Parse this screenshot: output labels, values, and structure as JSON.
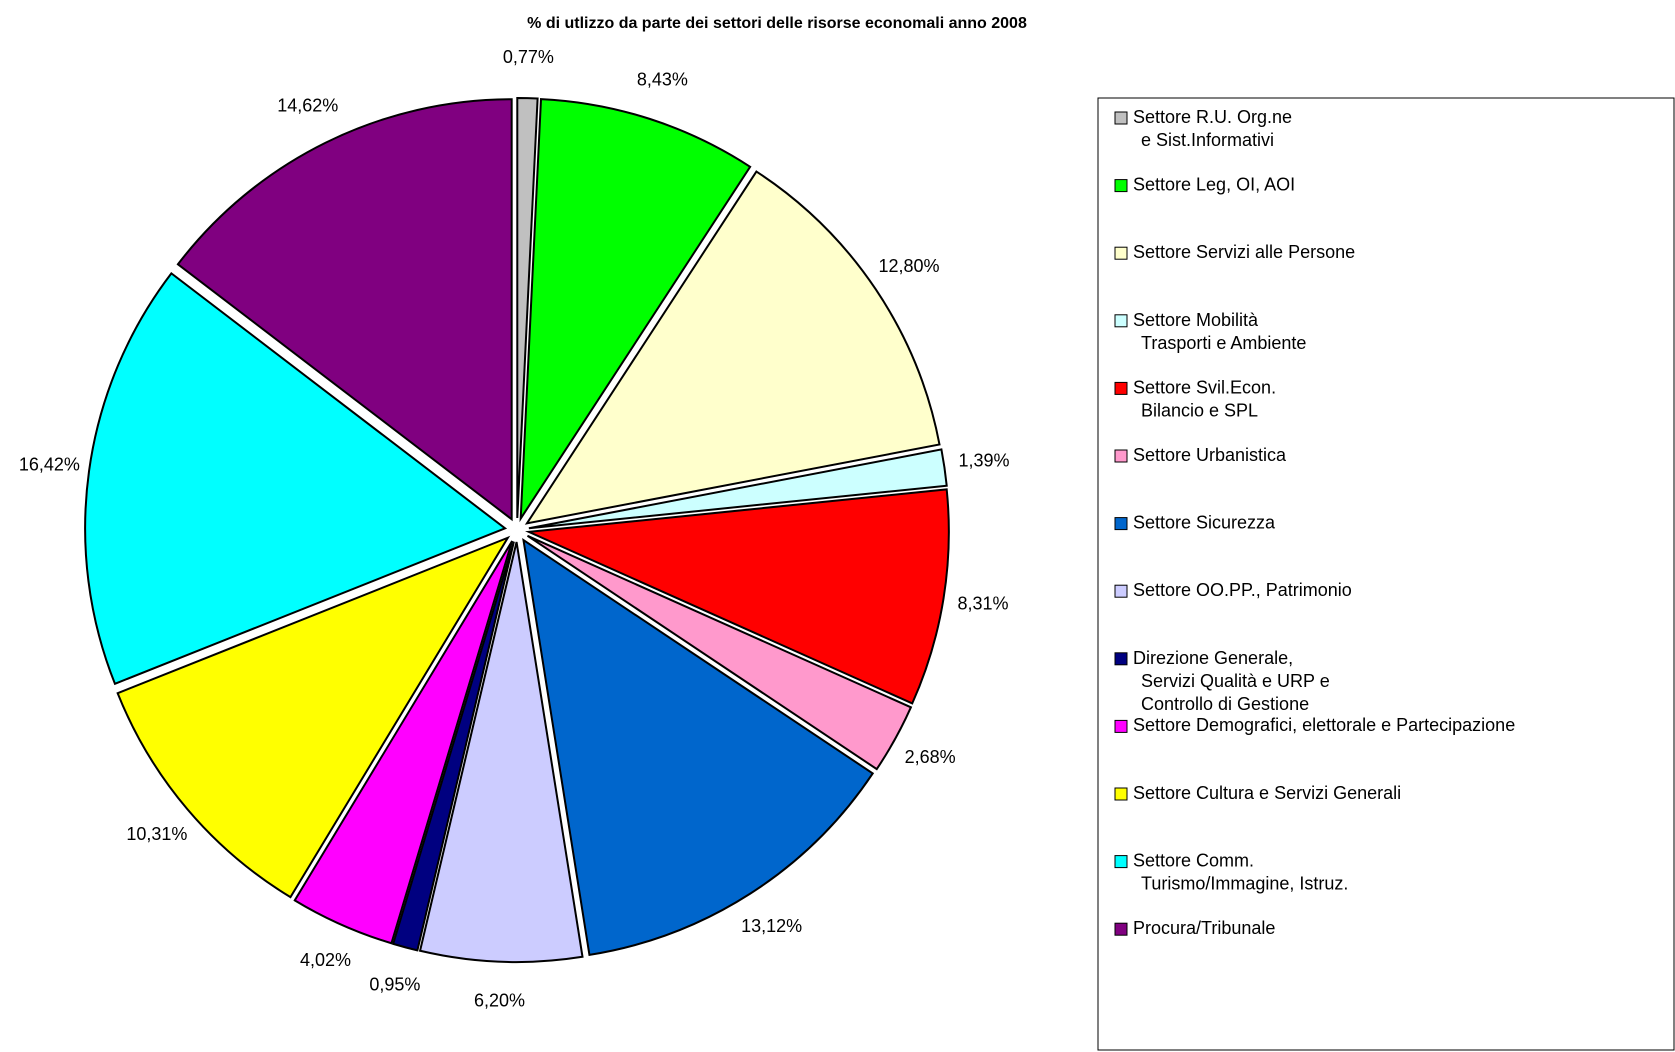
{
  "chart_data": {
    "type": "pie",
    "title": "% di utlizzo da parte dei settori delle risorse economali anno 2008",
    "categories": [
      "Settore R.U. Org.ne\ne Sist.Informativi",
      "Settore Leg, OI, AOI",
      "Settore Servizi alle Persone",
      "Settore Mobilità\nTrasporti e Ambiente",
      "Settore Svil.Econ.\nBilancio e SPL",
      "Settore Urbanistica",
      "Settore Sicurezza",
      "Settore OO.PP., Patrimonio",
      "Direzione Generale,\nServizi Qualità e URP e\nControllo di Gestione",
      "Settore Demografici, elettorale e Partecipazione",
      "Settore Cultura e Servizi Generali",
      "Settore Comm.\nTurismo/Immagine, Istruz.",
      "Procura/Tribunale"
    ],
    "values": [
      0.77,
      8.43,
      12.8,
      1.39,
      8.31,
      2.68,
      13.12,
      6.2,
      0.95,
      4.02,
      10.31,
      16.42,
      14.62
    ],
    "value_labels": [
      "0,77%",
      "8,43%",
      "12,80%",
      "1,39%",
      "8,31%",
      "2,68%",
      "13,12%",
      "6,20%",
      "0,95%",
      "4,02%",
      "10,31%",
      "16,42%",
      "14,62%"
    ],
    "colors": [
      "#c0c0c0",
      "#00ff00",
      "#ffffcc",
      "#ccffff",
      "#ff0000",
      "#ff99cc",
      "#0066cc",
      "#ccccff",
      "#000080",
      "#ff00ff",
      "#ffff00",
      "#00ffff",
      "#800080"
    ],
    "legend": "right"
  }
}
